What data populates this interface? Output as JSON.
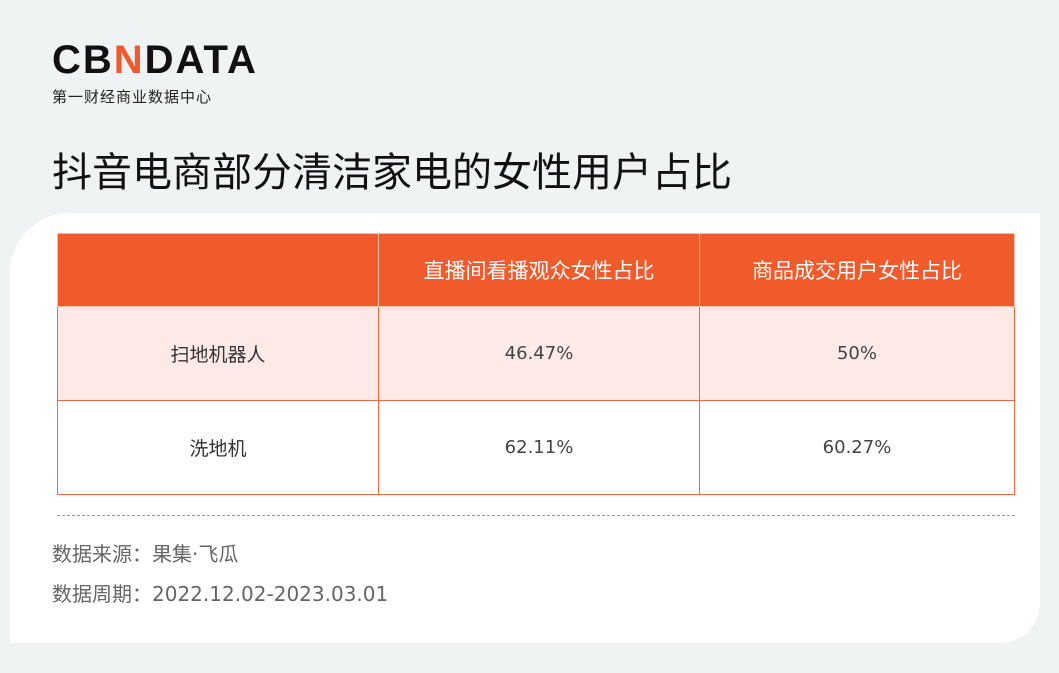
{
  "logo": {
    "text_pre": "CB",
    "text_n": "N",
    "text_post": "DATA",
    "subtitle": "第一财经商业数据中心"
  },
  "title": "抖音电商部分清洁家电的女性用户占比",
  "table": {
    "headers": [
      "",
      "直播间看播观众女性占比",
      "商品成交用户女性占比"
    ],
    "rows": [
      [
        "扫地机器人",
        "46.47%",
        "50%"
      ],
      [
        "洗地机",
        "62.11%",
        "60.27%"
      ]
    ]
  },
  "footer": {
    "source": "数据来源：果集·飞瓜",
    "period": "数据周期：2022.12.02-2023.03.01"
  },
  "colors": {
    "accent": "#f15a2b",
    "row_tint": "#fde9e6"
  }
}
